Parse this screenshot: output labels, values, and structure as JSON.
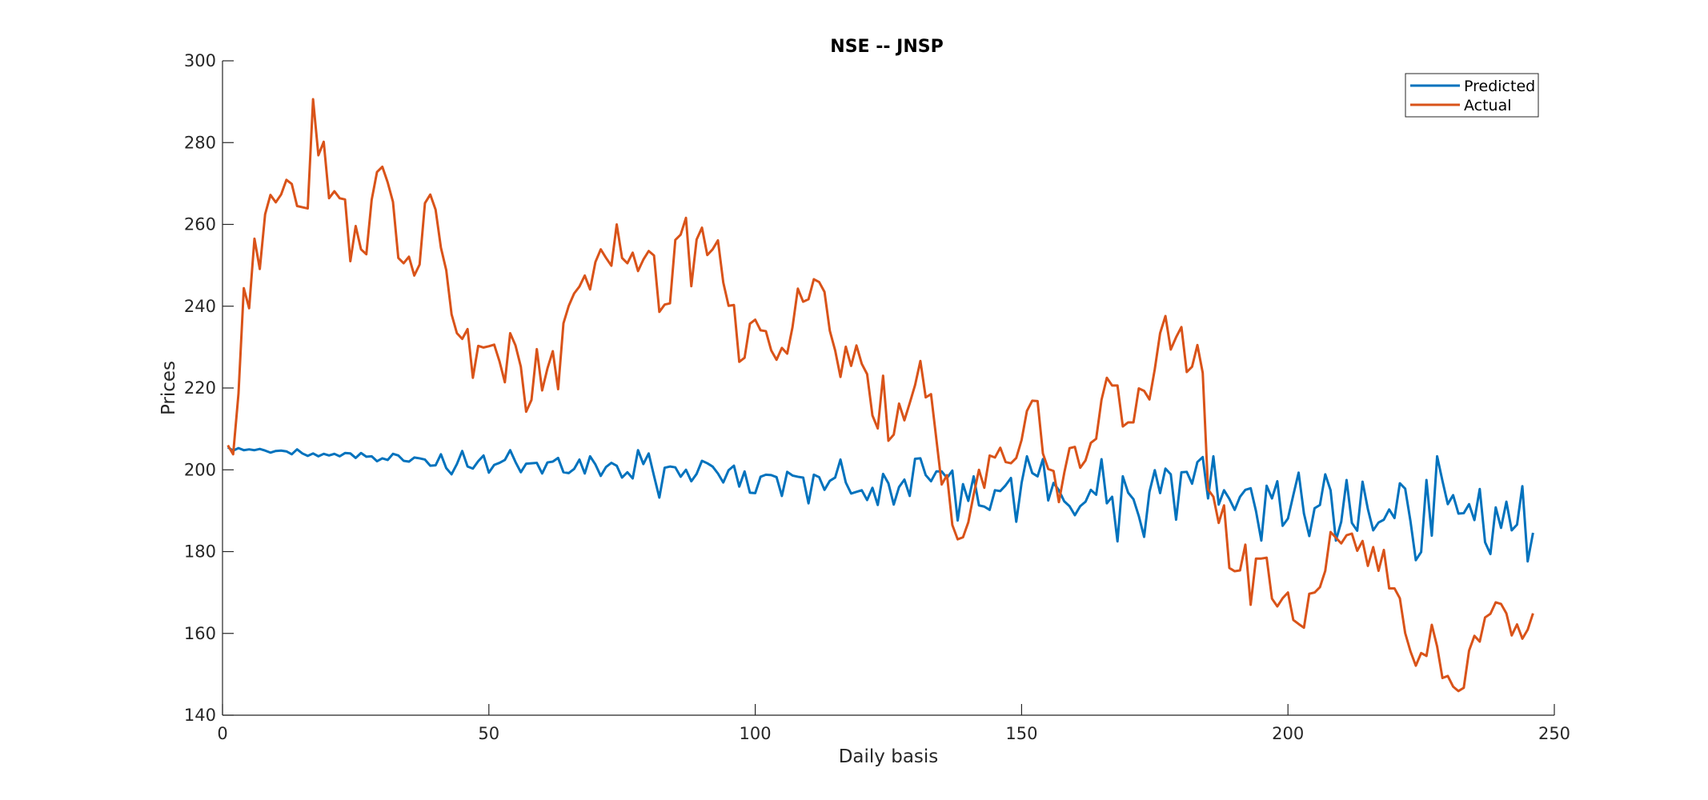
{
  "chart_data": {
    "type": "line",
    "title": "NSE -- JNSP",
    "xlabel": "Daily basis",
    "ylabel": "Prices",
    "xlim": [
      0,
      250
    ],
    "ylim": [
      140,
      300
    ],
    "xticks": [
      0,
      50,
      100,
      150,
      200,
      250
    ],
    "yticks": [
      140,
      160,
      180,
      200,
      220,
      240,
      260,
      280,
      300
    ],
    "grid": false,
    "legend_position": "top-right",
    "series": [
      {
        "name": "Predicted",
        "color": "#0072BD",
        "values": [
          205.5,
          204.7,
          205.3,
          204.8,
          205.0,
          204.8,
          205.1,
          204.7,
          204.2,
          204.6,
          204.7,
          204.5,
          203.8,
          205.0,
          204.0,
          203.4,
          204.0,
          203.3,
          203.9,
          203.5,
          203.9,
          203.3,
          204.1,
          204.0,
          202.9,
          204.1,
          203.2,
          203.3,
          202.1,
          202.8,
          202.4,
          203.9,
          203.5,
          202.2,
          202.0,
          203.0,
          202.8,
          202.5,
          201.0,
          201.1,
          203.8,
          200.4,
          198.9,
          201.4,
          204.6,
          200.8,
          200.3,
          202.1,
          203.5,
          199.3,
          201.2,
          201.7,
          202.4,
          204.8,
          201.9,
          199.4,
          201.5,
          201.6,
          201.7,
          199.1,
          201.8,
          202.0,
          202.9,
          199.4,
          199.2,
          200.2,
          202.5,
          199.1,
          203.3,
          201.3,
          198.5,
          200.7,
          201.7,
          201.0,
          198.1,
          199.4,
          197.9,
          204.8,
          201.4,
          204.0,
          198.5,
          193.2,
          200.5,
          200.8,
          200.6,
          198.3,
          200.0,
          197.2,
          199.0,
          202.2,
          201.6,
          200.8,
          199.1,
          196.9,
          199.9,
          201.0,
          195.9,
          199.6,
          194.4,
          194.3,
          198.3,
          198.8,
          198.7,
          198.2,
          193.6,
          199.5,
          198.6,
          198.3,
          198.1,
          191.8,
          198.8,
          198.2,
          195.1,
          197.3,
          198.1,
          202.5,
          196.9,
          194.2,
          194.6,
          195.0,
          192.6,
          195.6,
          191.4,
          199.0,
          196.7,
          191.5,
          195.8,
          197.6,
          193.6,
          202.7,
          202.8,
          198.7,
          197.2,
          199.6,
          199.6,
          198.0,
          199.8,
          187.6,
          196.5,
          192.4,
          198.4,
          191.3,
          191.0,
          190.2,
          195.0,
          194.8,
          196.2,
          198.0,
          187.3,
          196.8,
          203.3,
          199.2,
          198.4,
          202.6,
          192.5,
          196.8,
          195.0,
          192.3,
          191.1,
          188.9,
          191.1,
          192.2,
          195.1,
          193.9,
          202.6,
          191.8,
          193.4,
          182.5,
          198.4,
          194.4,
          192.8,
          188.7,
          183.6,
          194.6,
          199.9,
          194.3,
          200.3,
          198.9,
          187.8,
          199.4,
          199.5,
          196.6,
          201.9,
          203.1,
          193.0,
          203.3,
          191.5,
          195.0,
          192.9,
          190.2,
          193.4,
          195.1,
          195.5,
          189.9,
          182.7,
          196.1,
          193.0,
          197.2,
          186.3,
          188.1,
          193.8,
          199.3,
          189.3,
          183.8,
          190.6,
          191.4,
          198.9,
          195.0,
          182.7,
          187.3,
          197.5,
          187.0,
          185.1,
          197.1,
          190.4,
          185.2,
          187.1,
          187.8,
          190.3,
          188.2,
          196.7,
          195.4,
          187.4,
          177.9,
          179.9,
          197.5,
          183.9,
          203.3,
          197.3,
          191.6,
          193.8,
          189.3,
          189.4,
          191.6,
          187.7,
          195.3,
          182.3,
          179.4,
          190.8,
          185.8,
          192.2,
          185.2,
          186.6,
          196.0,
          177.6,
          184.6
        ]
      },
      {
        "name": "Actual",
        "color": "#D95319",
        "values": [
          206.0,
          203.8,
          218.6,
          244.4,
          239.5,
          256.5,
          249.1,
          262.5,
          267.2,
          265.4,
          267.3,
          270.9,
          269.9,
          264.5,
          264.2,
          263.9,
          290.6,
          276.9,
          280.2,
          266.4,
          268.1,
          266.4,
          266.1,
          251.0,
          259.6,
          253.9,
          252.7,
          266.0,
          272.8,
          274.1,
          270.3,
          265.5,
          251.8,
          250.5,
          252.1,
          247.5,
          250.2,
          265.2,
          267.3,
          263.6,
          254.3,
          248.8,
          238.0,
          233.4,
          232.0,
          234.4,
          222.5,
          230.3,
          229.9,
          230.2,
          230.6,
          226.5,
          221.4,
          233.4,
          230.4,
          225.2,
          214.2,
          217.1,
          229.5,
          219.4,
          224.8,
          229.0,
          219.7,
          235.8,
          240.1,
          243.1,
          244.8,
          247.5,
          244.1,
          250.8,
          253.9,
          251.8,
          249.9,
          260.0,
          251.8,
          250.5,
          253.1,
          248.6,
          251.4,
          253.5,
          252.4,
          238.6,
          240.4,
          240.7,
          256.2,
          257.5,
          261.6,
          244.9,
          256.3,
          259.2,
          252.5,
          253.9,
          256.1,
          245.8,
          240.1,
          240.3,
          226.4,
          227.4,
          235.7,
          236.7,
          234.1,
          233.9,
          229.2,
          226.9,
          229.8,
          228.4,
          234.9,
          244.3,
          241.1,
          241.7,
          246.6,
          245.9,
          243.5,
          234.0,
          229.2,
          222.7,
          230.1,
          225.4,
          230.4,
          225.9,
          223.4,
          213.3,
          210.1,
          223.0,
          207.1,
          208.6,
          216.2,
          212.1,
          216.3,
          220.7,
          226.6,
          217.7,
          218.5,
          207.5,
          196.4,
          198.7,
          186.5,
          183.0,
          183.5,
          187.2,
          193.9,
          200.0,
          195.6,
          203.5,
          203.0,
          205.4,
          201.9,
          201.6,
          202.9,
          207.3,
          214.4,
          216.9,
          216.8,
          204.0,
          200.2,
          199.7,
          192.1,
          199.2,
          205.3,
          205.6,
          200.5,
          202.3,
          206.6,
          207.6,
          217.1,
          222.5,
          220.6,
          220.6,
          210.6,
          211.6,
          211.6,
          219.9,
          219.3,
          217.2,
          224.6,
          233.4,
          237.6,
          229.4,
          232.4,
          234.9,
          223.9,
          225.2,
          230.5,
          223.7,
          195.2,
          193.4,
          187.0,
          191.3,
          176.0,
          175.2,
          175.4,
          181.7,
          167.0,
          178.3,
          178.3,
          178.5,
          168.5,
          166.6,
          168.6,
          170.0,
          163.3,
          162.3,
          161.4,
          169.7,
          170.0,
          171.3,
          175.3,
          184.8,
          183.4,
          182.0,
          184.0,
          184.4,
          180.2,
          182.6,
          176.5,
          181.1,
          175.3,
          180.4,
          171.0,
          171.0,
          168.6,
          160.1,
          155.6,
          152.1,
          155.2,
          154.5,
          162.1,
          156.8,
          149.1,
          149.6,
          147.0,
          145.9,
          146.7,
          155.8,
          159.4,
          158.0,
          163.9,
          164.8,
          167.6,
          167.2,
          164.9,
          159.5,
          162.2,
          158.7,
          160.9,
          164.9
        ]
      }
    ]
  }
}
